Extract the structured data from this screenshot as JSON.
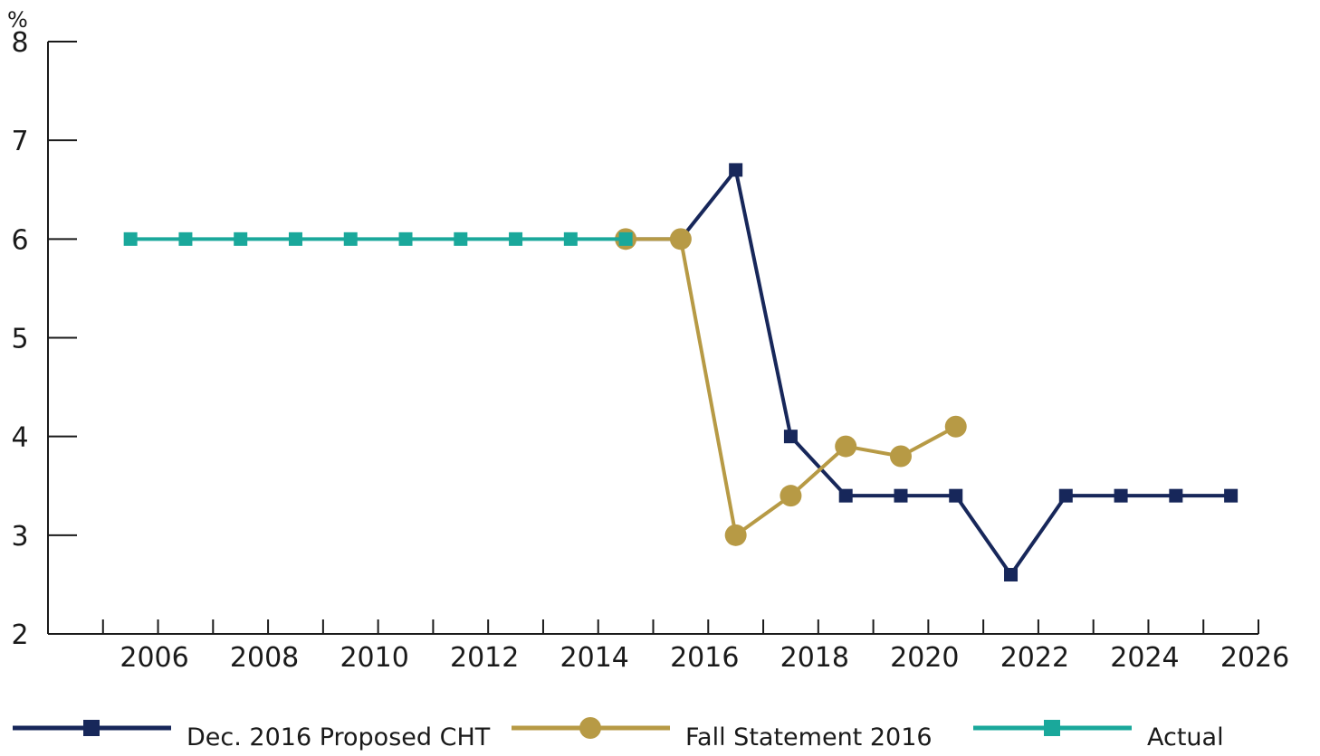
{
  "chart_data": {
    "type": "line",
    "title": "",
    "xlabel": "",
    "ylabel": "%",
    "xlim": [
      2004,
      2026
    ],
    "ylim": [
      2,
      8
    ],
    "xticks": [
      2006,
      2008,
      2010,
      2012,
      2014,
      2016,
      2018,
      2020,
      2022,
      2024,
      2026
    ],
    "yticks": [
      2,
      3,
      4,
      5,
      6,
      7,
      8
    ],
    "grid": false,
    "legend_position": "bottom",
    "series": [
      {
        "name": "Dec. 2016 Proposed CHT",
        "color": "#17275a",
        "marker": "square",
        "x": [
          2014.5,
          2015.5,
          2016.5,
          2017.5,
          2018.5,
          2019.5,
          2020.5,
          2021.5,
          2022.5,
          2023.5,
          2024.5,
          2025.5
        ],
        "y": [
          6,
          6,
          6.7,
          4,
          3.4,
          3.4,
          3.4,
          2.6,
          3.4,
          3.4,
          3.4,
          3.4
        ]
      },
      {
        "name": "Fall Statement 2016",
        "color": "#b79a45",
        "marker": "circle",
        "x": [
          2014.5,
          2015.5,
          2016.5,
          2017.5,
          2018.5,
          2019.5,
          2020.5
        ],
        "y": [
          6,
          6,
          3,
          3.4,
          3.9,
          3.8,
          4.1
        ]
      },
      {
        "name": "Actual",
        "color": "#1aa89b",
        "marker": "square",
        "x": [
          2005.5,
          2006.5,
          2007.5,
          2008.5,
          2009.5,
          2010.5,
          2011.5,
          2012.5,
          2013.5,
          2014.5
        ],
        "y": [
          6,
          6,
          6,
          6,
          6,
          6,
          6,
          6,
          6,
          6
        ]
      }
    ]
  }
}
